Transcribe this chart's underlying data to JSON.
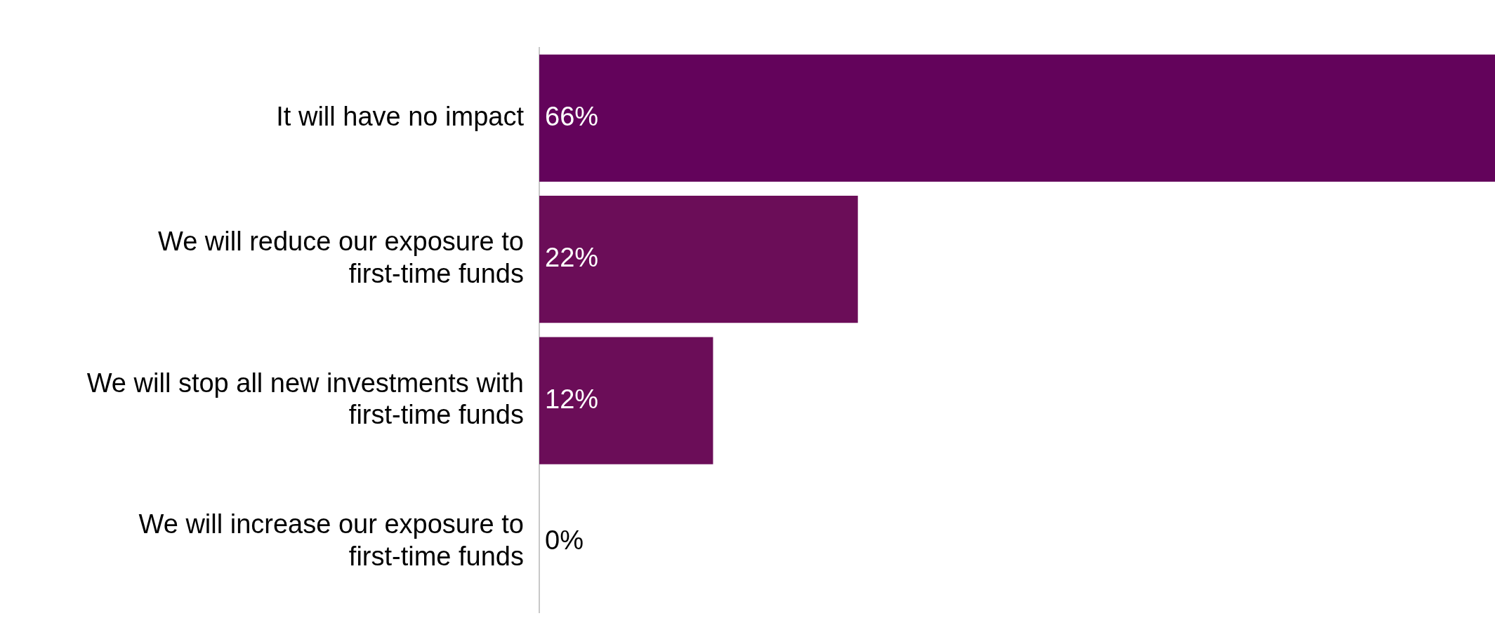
{
  "chart_data": {
    "type": "bar",
    "orientation": "horizontal",
    "tick_labels": "y",
    "categories": [
      "It will have no impact",
      "We will reduce our exposure to\nfirst-time funds",
      "We will stop all new investments with\nfirst-time funds",
      "We will increase our exposure to\nfirst-time funds"
    ],
    "values": [
      66,
      22,
      12,
      0
    ],
    "colors": [
      "#63035b",
      "#6b0d58",
      "#6b0d58",
      "#6b0d58"
    ],
    "value_labels": [
      "66%",
      "22%",
      "12%",
      "0%"
    ]
  }
}
